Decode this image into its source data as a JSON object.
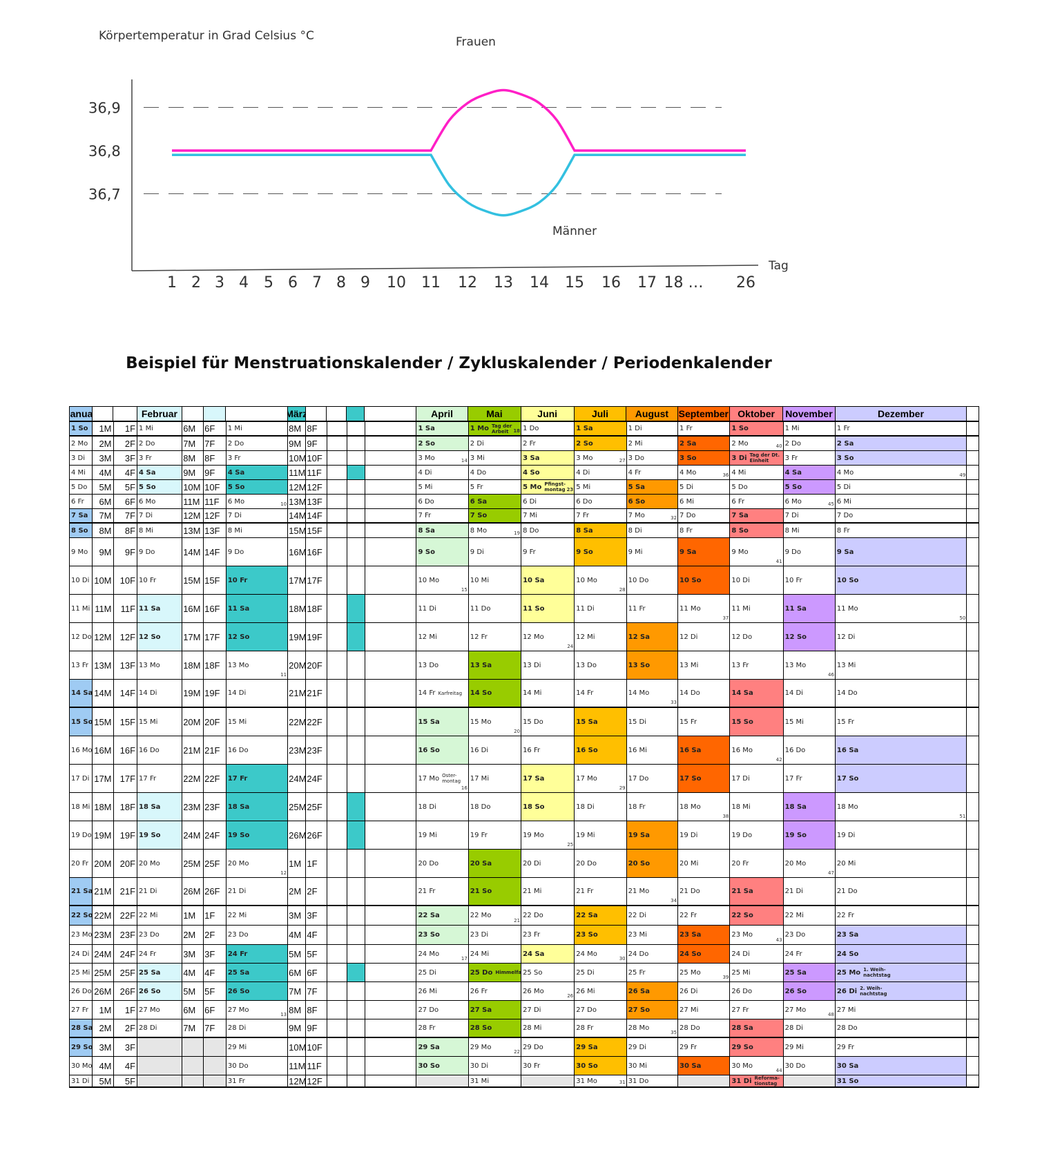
{
  "chart_data": {
    "type": "line",
    "ylabel": "Körpertemperatur in Grad Celsius  °C",
    "xlabel": "Tag",
    "yticks": [
      "36,9",
      "36,8",
      "36,7"
    ],
    "xticks": [
      "1",
      "2",
      "3",
      "4",
      "5",
      "6",
      "7",
      "8",
      "9",
      "10",
      "11",
      "12",
      "13",
      "14",
      "15",
      "16",
      "17",
      "18 …",
      "26"
    ],
    "series": [
      {
        "name": "Frauen",
        "color": "#ff1fc6",
        "x": [
          1,
          11,
          11.5,
          12,
          12.5,
          13,
          13.5,
          14,
          14.5,
          15,
          26
        ],
        "y": [
          36.8,
          36.8,
          36.87,
          36.91,
          36.93,
          36.94,
          36.93,
          36.91,
          36.87,
          36.8,
          36.8
        ]
      },
      {
        "name": "Männer",
        "color": "#33c0e0",
        "x": [
          1,
          11,
          11.5,
          12,
          12.5,
          13,
          13.5,
          14,
          14.5,
          15,
          26
        ],
        "y": [
          36.79,
          36.79,
          36.72,
          36.68,
          36.66,
          36.65,
          36.66,
          36.68,
          36.72,
          36.79,
          36.79
        ]
      }
    ],
    "gridlines_dashed": [
      36.9,
      36.7
    ]
  },
  "calendar": {
    "title": "Beispiel für Menstruationskalender / Zykluskalender / Periodenkalender",
    "headers": [
      "Januar",
      "",
      "",
      "Februar",
      "",
      "",
      "",
      "März",
      "",
      "",
      "",
      "",
      "April",
      "Mai",
      "Juni",
      "Juli",
      "August",
      "September",
      "Oktober",
      "November",
      "Dezember",
      ""
    ],
    "header_colors": [
      "#9fcbf3",
      "#fff",
      "#fff",
      "#d8f7fb",
      "#fff",
      "#d8f7fb",
      "#fff",
      "#3cc9c9",
      "#fff",
      "#fff",
      "#3cc9c9",
      "#fff",
      "#d6f7d6",
      "#98cc00",
      "#ffff99",
      "#ffbf00",
      "#ff9900",
      "#ff6600",
      "#ff8080",
      "#cc99ff",
      "#ccccff",
      "#fff"
    ],
    "rows": [
      [
        "1 So",
        "1M",
        "1F",
        "1 Mi",
        "6M",
        "6F",
        "1 Mi",
        "8M",
        "8F",
        "",
        "",
        "",
        "1 Sa",
        "1 Mo|Tag der Arbeit|18",
        "1 Do",
        "1 Sa",
        "1 Di",
        "1 Fr",
        "1 So",
        "1 Mi",
        "1 Fr",
        ""
      ],
      [
        "2 Mo",
        "2M",
        "2F",
        "2 Do",
        "7M",
        "7F",
        "2 Do",
        "9M",
        "9F",
        "",
        "",
        "",
        "2 So",
        "2 Di",
        "2 Fr",
        "2 So",
        "2 Mi",
        "2 Sa",
        "2 Mo||40",
        "2 Do",
        "2 Sa",
        ""
      ],
      [
        "3 Di",
        "3M",
        "3F",
        "3 Fr",
        "8M",
        "8F",
        "3 Fr",
        "10M",
        "10F",
        "",
        "",
        "",
        "3 Mo||14",
        "3 Mi",
        "3 Sa",
        "3 Mo||27",
        "3 Do",
        "3 So",
        "3 Di|Tag der Dt. Einheit",
        "3 Fr",
        "3 So",
        ""
      ],
      [
        "4 Mi",
        "4M",
        "4F",
        "4 Sa",
        "9M",
        "9F",
        "4 Sa",
        "11M",
        "11F",
        "",
        "",
        "",
        "4 Di",
        "4 Do",
        "4 So",
        "4 Di",
        "4 Fr",
        "4 Mo||36",
        "4 Mi",
        "4 Sa",
        "4 Mo||49",
        ""
      ],
      [
        "5 Do",
        "5M",
        "5F",
        "5 So",
        "10M",
        "10F",
        "5 So",
        "12M",
        "12F",
        "",
        "",
        "",
        "5 Mi",
        "5 Fr",
        "5 Mo|Pfingst-montag|23",
        "5 Mi",
        "5 Sa",
        "5 Di",
        "5 Do",
        "5 So",
        "5 Di",
        ""
      ],
      [
        "6 Fr",
        "6M",
        "6F",
        "6 Mo",
        "11M",
        "11F",
        "6 Mo||10",
        "13M",
        "13F",
        "",
        "",
        "",
        "6 Do",
        "6 Sa",
        "6 Di",
        "6 Do",
        "6 So",
        "6 Mi",
        "6 Fr",
        "6 Mo||45",
        "6 Mi",
        ""
      ],
      [
        "7 Sa",
        "7M",
        "7F",
        "7 Di",
        "12M",
        "12F",
        "7 Di",
        "14M",
        "14F",
        "",
        "",
        "",
        "7 Fr",
        "7 So",
        "7 Mi",
        "7 Fr",
        "7 Mo||32",
        "7 Do",
        "7 Sa",
        "7 Di",
        "7 Do",
        ""
      ],
      [
        "8 So",
        "8M",
        "8F",
        "8 Mi",
        "13M",
        "13F",
        "8 Mi",
        "15M",
        "15F",
        "",
        "",
        "",
        "8 Sa",
        "8 Mo||19",
        "8 Do",
        "8 Sa",
        "8 Di",
        "8 Fr",
        "8 So",
        "8 Mi",
        "8 Fr",
        ""
      ],
      [
        "9 Mo",
        "9M",
        "9F",
        "9 Do",
        "14M",
        "14F",
        "9 Do",
        "16M",
        "16F",
        "",
        "",
        "",
        "9 So",
        "9 Di",
        "9 Fr",
        "9 So",
        "9 Mi",
        "9 Sa",
        "9 Mo||41",
        "9 Do",
        "9 Sa",
        ""
      ],
      [
        "10 Di",
        "10M",
        "10F",
        "10 Fr",
        "15M",
        "15F",
        "10 Fr",
        "17M",
        "17F",
        "",
        "",
        "",
        "10 Mo||15",
        "10 Mi",
        "10 Sa",
        "10 Mo||28",
        "10 Do",
        "10 So",
        "10 Di",
        "10 Fr",
        "10 So",
        ""
      ],
      [
        "11 Mi",
        "11M",
        "11F",
        "11 Sa",
        "16M",
        "16F",
        "11 Sa",
        "18M",
        "18F",
        "",
        "",
        "",
        "11 Di",
        "11 Do",
        "11 So",
        "11 Di",
        "11 Fr",
        "11 Mo||37",
        "11 Mi",
        "11 Sa",
        "11 Mo||50",
        ""
      ],
      [
        "12 Do",
        "12M",
        "12F",
        "12 So",
        "17M",
        "17F",
        "12 So",
        "19M",
        "19F",
        "",
        "",
        "",
        "12 Mi",
        "12 Fr",
        "12 Mo||24",
        "12 Mi",
        "12 Sa",
        "12 Di",
        "12 Do",
        "12 So",
        "12 Di",
        ""
      ],
      [
        "13 Fr",
        "13M",
        "13F",
        "13 Mo",
        "18M",
        "18F",
        "13 Mo||11",
        "20M",
        "20F",
        "",
        "",
        "",
        "13 Do",
        "13 Sa",
        "13 Di",
        "13 Do",
        "13 So",
        "13 Mi",
        "13 Fr",
        "13 Mo||46",
        "13 Mi",
        ""
      ],
      [
        "14 Sa",
        "14M",
        "14F",
        "14 Di",
        "19M",
        "19F",
        "14 Di",
        "21M",
        "21F",
        "",
        "",
        "",
        "14 Fr|Karfreitag",
        "14 So",
        "14 Mi",
        "14 Fr",
        "14 Mo||33",
        "14 Do",
        "14 Sa",
        "14 Di",
        "14 Do",
        ""
      ],
      [
        "15 So",
        "15M",
        "15F",
        "15 Mi",
        "20M",
        "20F",
        "15 Mi",
        "22M",
        "22F",
        "",
        "",
        "",
        "15 Sa",
        "15 Mo||20",
        "15 Do",
        "15 Sa",
        "15 Di",
        "15 Fr",
        "15 So",
        "15 Mi",
        "15 Fr",
        ""
      ],
      [
        "16 Mo",
        "16M",
        "16F",
        "16 Do",
        "21M",
        "21F",
        "16 Do",
        "23M",
        "23F",
        "",
        "",
        "",
        "16 So",
        "16 Di",
        "16 Fr",
        "16 So",
        "16 Mi",
        "16 Sa",
        "16 Mo||42",
        "16 Do",
        "16 Sa",
        ""
      ],
      [
        "17 Di",
        "17M",
        "17F",
        "17 Fr",
        "22M",
        "22F",
        "17 Fr",
        "24M",
        "24F",
        "",
        "",
        "",
        "17 Mo|Oster-montag|16",
        "17 Mi",
        "17 Sa",
        "17 Mo||29",
        "17 Do",
        "17 So",
        "17 Di",
        "17 Fr",
        "17 So",
        ""
      ],
      [
        "18 Mi",
        "18M",
        "18F",
        "18 Sa",
        "23M",
        "23F",
        "18 Sa",
        "25M",
        "25F",
        "",
        "",
        "",
        "18 Di",
        "18 Do",
        "18 So",
        "18 Di",
        "18 Fr",
        "18 Mo||38",
        "18 Mi",
        "18 Sa",
        "18 Mo||51",
        ""
      ],
      [
        "19 Do",
        "19M",
        "19F",
        "19 So",
        "24M",
        "24F",
        "19 So",
        "26M",
        "26F",
        "",
        "",
        "",
        "19 Mi",
        "19 Fr",
        "19 Mo||25",
        "19 Mi",
        "19 Sa",
        "19 Di",
        "19 Do",
        "19 So",
        "19 Di",
        ""
      ],
      [
        "20 Fr",
        "20M",
        "20F",
        "20 Mo",
        "25M",
        "25F",
        "20 Mo||12",
        "1M",
        "1F",
        "",
        "",
        "",
        "20 Do",
        "20 Sa",
        "20 Di",
        "20 Do",
        "20 So",
        "20 Mi",
        "20 Fr",
        "20 Mo||47",
        "20 Mi",
        ""
      ],
      [
        "21 Sa",
        "21M",
        "21F",
        "21 Di",
        "26M",
        "26F",
        "21 Di",
        "2M",
        "2F",
        "",
        "",
        "",
        "21 Fr",
        "21 So",
        "21 Mi",
        "21 Fr",
        "21 Mo||34",
        "21 Do",
        "21 Sa",
        "21 Di",
        "21 Do",
        ""
      ],
      [
        "22 So",
        "22M",
        "22F",
        "22 Mi",
        "1M",
        "1F",
        "22 Mi",
        "3M",
        "3F",
        "",
        "",
        "",
        "22 Sa",
        "22 Mo||21",
        "22 Do",
        "22 Sa",
        "22 Di",
        "22 Fr",
        "22 So",
        "22 Mi",
        "22 Fr",
        ""
      ],
      [
        "23 Mo",
        "23M",
        "23F",
        "23 Do",
        "2M",
        "2F",
        "23 Do",
        "4M",
        "4F",
        "",
        "",
        "",
        "23 So",
        "23 Di",
        "23 Fr",
        "23 So",
        "23 Mi",
        "23 Sa",
        "23 Mo||43",
        "23 Do",
        "23 Sa",
        ""
      ],
      [
        "24 Di",
        "24M",
        "24F",
        "24 Fr",
        "3M",
        "3F",
        "24 Fr",
        "5M",
        "5F",
        "",
        "",
        "",
        "24 Mo||17",
        "24 Mi",
        "24 Sa",
        "24 Mo||30",
        "24 Do",
        "24 So",
        "24 Di",
        "24 Fr",
        "24 So",
        ""
      ],
      [
        "25 Mi",
        "25M",
        "25F",
        "25 Sa",
        "4M",
        "4F",
        "25 Sa",
        "6M",
        "6F",
        "",
        "",
        "",
        "25 Di",
        "25 Do|Himmelfahrt",
        "25 So",
        "25 Di",
        "25 Fr",
        "25 Mo||39",
        "25 Mi",
        "25 Sa",
        "25 Mo|1. Weih-nachtstag",
        ""
      ],
      [
        "26 Do",
        "26M",
        "26F",
        "26 So",
        "5M",
        "5F",
        "26 So",
        "7M",
        "7F",
        "",
        "",
        "",
        "26 Mi",
        "26 Fr",
        "26 Mo||26",
        "26 Mi",
        "26 Sa",
        "26 Di",
        "26 Do",
        "26 So",
        "26 Di|2. Weih-nachtstag",
        ""
      ],
      [
        "27 Fr",
        "1M",
        "1F",
        "27 Mo",
        "6M",
        "6F",
        "27 Mo||13",
        "8M",
        "8F",
        "",
        "",
        "",
        "27 Do",
        "27 Sa",
        "27 Di",
        "27 Do",
        "27 So",
        "27 Mi",
        "27 Fr",
        "27 Mo||48",
        "27 Mi",
        ""
      ],
      [
        "28 Sa",
        "2M",
        "2F",
        "28 Di",
        "7M",
        "7F",
        "28 Di",
        "9M",
        "9F",
        "",
        "",
        "",
        "28 Fr",
        "28 So",
        "28 Mi",
        "28 Fr",
        "28 Mo||35",
        "28 Do",
        "28 Sa",
        "28 Di",
        "28 Do",
        ""
      ],
      [
        "29 So",
        "3M",
        "3F",
        "",
        "",
        "",
        "29 Mi",
        "10M",
        "10F",
        "",
        "",
        "",
        "29 Sa",
        "29 Mo||22",
        "29 Do",
        "29 Sa",
        "29 Di",
        "29 Fr",
        "29 So",
        "29 Mi",
        "29 Fr",
        ""
      ],
      [
        "30 Mo",
        "4M",
        "4F",
        "",
        "",
        "",
        "30 Do",
        "11M",
        "11F",
        "",
        "",
        "",
        "30 So",
        "30 Di",
        "30 Fr",
        "30 So",
        "30 Mi",
        "30 Sa",
        "30 Mo||44",
        "30 Do",
        "30 Sa",
        ""
      ],
      [
        "31 Di",
        "5M",
        "5F",
        "",
        "",
        "",
        "31 Fr",
        "12M",
        "12F",
        "",
        "",
        "",
        "",
        "31 Mi",
        "",
        "31 Mo||31",
        "31 Do",
        "",
        "31 Di|Reforma-tionstag",
        "",
        "31 So",
        ""
      ]
    ]
  }
}
